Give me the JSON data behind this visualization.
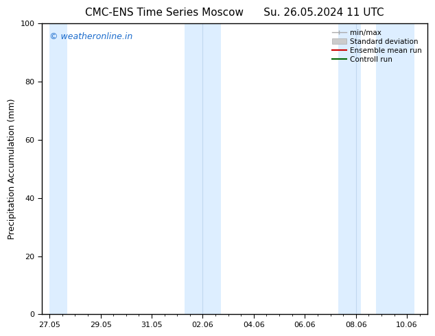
{
  "title_left": "CMC-ENS Time Series Moscow",
  "title_right": "Su. 26.05.2024 11 UTC",
  "ylabel": "Precipitation Accumulation (mm)",
  "ylim": [
    0,
    100
  ],
  "yticks": [
    0,
    20,
    40,
    60,
    80,
    100
  ],
  "background_color": "#ffffff",
  "plot_bg_color": "#ffffff",
  "shaded_color": "#ddeeff",
  "shaded_line_color": "#c0d8ef",
  "watermark_text": "© weatheronline.in",
  "watermark_color": "#1a6bcc",
  "tick_labels": [
    "27.05",
    "29.05",
    "31.05",
    "02.06",
    "04.06",
    "06.06",
    "08.06",
    "10.06"
  ],
  "x_ticks": [
    0,
    2,
    4,
    6,
    8,
    10,
    12,
    14
  ],
  "x_min": -0.3,
  "x_max": 14.8,
  "shaded_bands": [
    [
      0.0,
      0.7
    ],
    [
      5.3,
      6.7
    ],
    [
      11.3,
      12.2
    ],
    [
      12.8,
      14.3
    ]
  ],
  "band_dividers": [
    6.0,
    12.0
  ],
  "figsize": [
    6.34,
    4.9
  ],
  "dpi": 100,
  "title_fontsize": 11,
  "ylabel_fontsize": 9,
  "tick_fontsize": 8,
  "watermark_fontsize": 9,
  "legend_fontsize": 7.5
}
